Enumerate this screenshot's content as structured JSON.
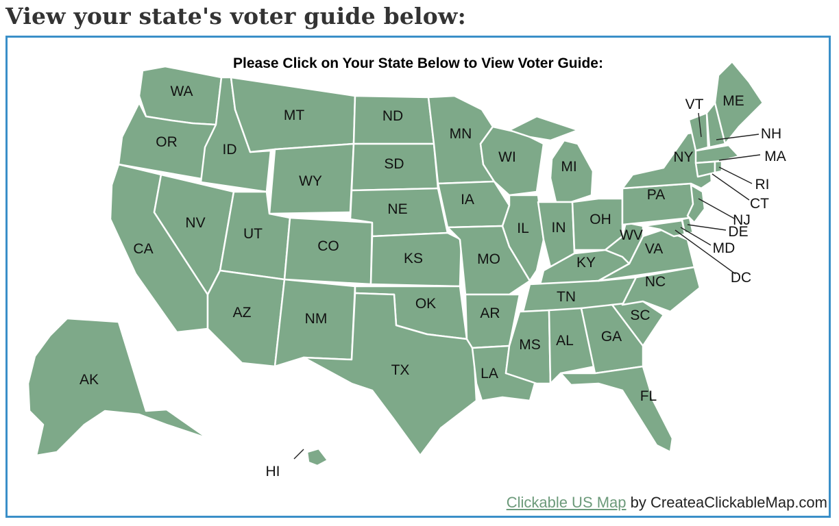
{
  "page": {
    "heading": "View your state's voter guide below:"
  },
  "map": {
    "title": "Please Click on Your State Below to View Voter Guide:",
    "fill_color": "#7ea989",
    "border_color": "#3a8fc8",
    "states": {
      "WA": "WA",
      "OR": "OR",
      "CA": "CA",
      "ID": "ID",
      "NV": "NV",
      "MT": "MT",
      "WY": "WY",
      "UT": "UT",
      "AZ": "AZ",
      "CO": "CO",
      "NM": "NM",
      "ND": "ND",
      "SD": "SD",
      "NE": "NE",
      "KS": "KS",
      "OK": "OK",
      "TX": "TX",
      "MN": "MN",
      "IA": "IA",
      "MO": "MO",
      "AR": "AR",
      "LA": "LA",
      "WI": "WI",
      "IL": "IL",
      "MI": "MI",
      "IN": "IN",
      "OH": "OH",
      "KY": "KY",
      "TN": "TN",
      "MS": "MS",
      "AL": "AL",
      "GA": "GA",
      "FL": "FL",
      "SC": "SC",
      "NC": "NC",
      "VA": "VA",
      "WV": "WV",
      "PA": "PA",
      "NY": "NY",
      "VT": "VT",
      "NH": "NH",
      "ME": "ME",
      "MA": "MA",
      "RI": "RI",
      "CT": "CT",
      "NJ": "NJ",
      "DE": "DE",
      "MD": "MD",
      "DC": "DC",
      "AK": "AK",
      "HI": "HI"
    }
  },
  "credit": {
    "link_text": "Clickable US Map",
    "suffix": " by CreateaClickableMap.com"
  }
}
